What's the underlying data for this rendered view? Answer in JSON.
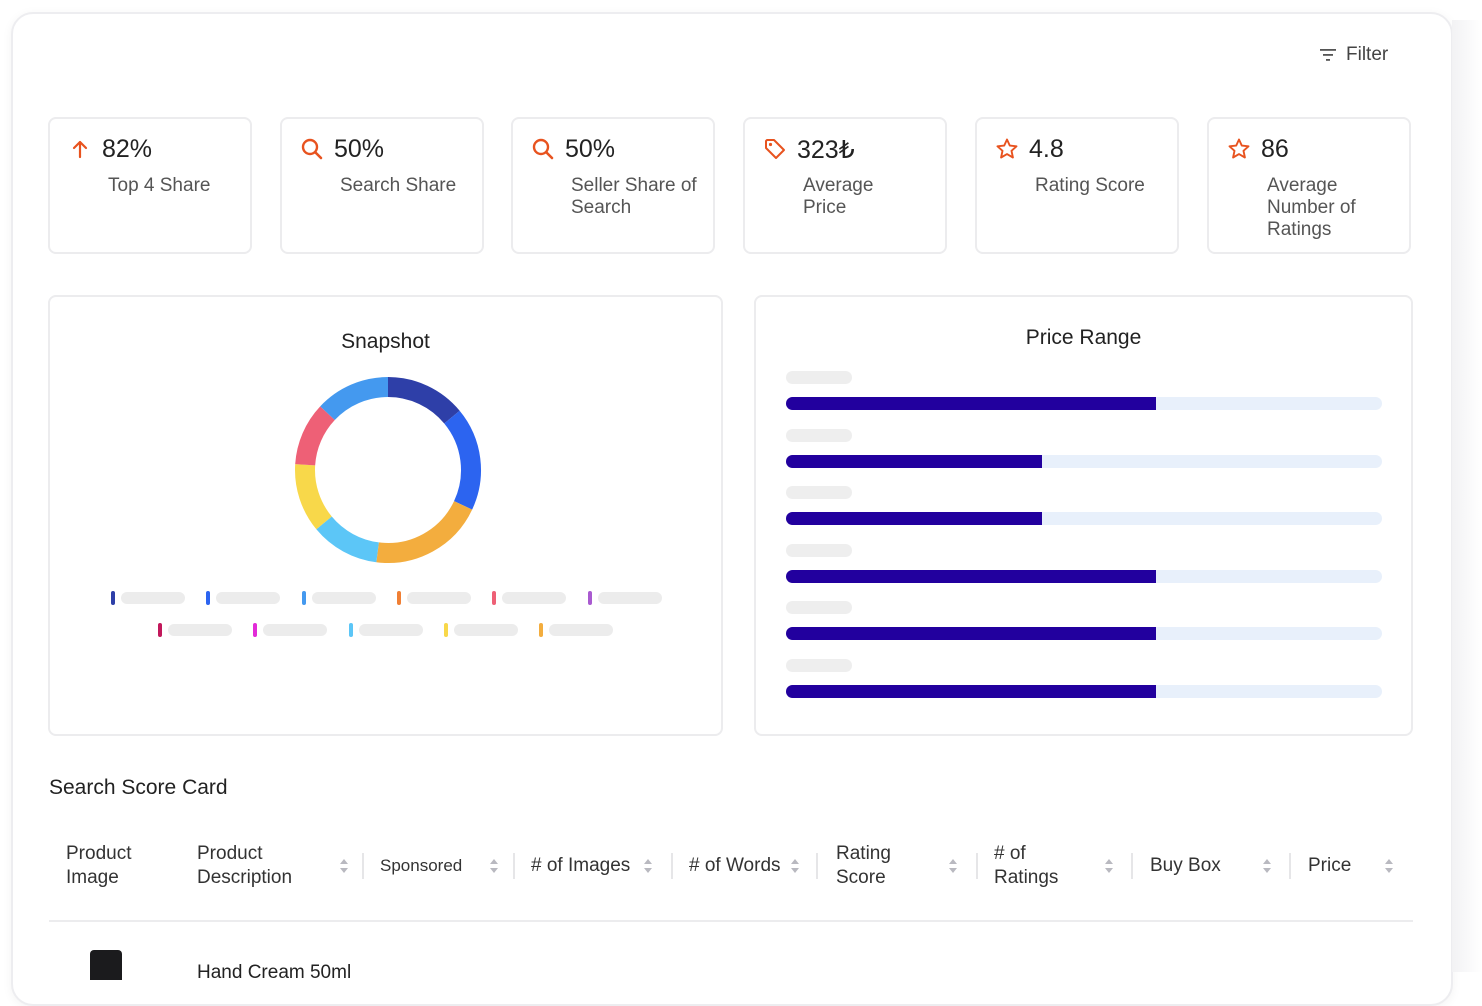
{
  "header": {
    "filter_label": "Filter"
  },
  "kpis": [
    {
      "value": "82%",
      "label": "Top 4 Share",
      "icon": "arrow-up-icon"
    },
    {
      "value": "50%",
      "label": "Search Share",
      "icon": "search-icon"
    },
    {
      "value": "50%",
      "label": "Seller Share of Search",
      "icon": "search-icon"
    },
    {
      "value": "323₺",
      "label": "Average Price",
      "icon": "price-tag-icon"
    },
    {
      "value": "4.8",
      "label": "Rating Score",
      "icon": "star-icon"
    },
    {
      "value": "86",
      "label": "Average Number of Ratings",
      "icon": "star-icon"
    }
  ],
  "colors": {
    "accent": "#e8531f",
    "bar": "#22009e",
    "track": "#e8f0fb"
  },
  "snapshot": {
    "title": "Snapshot",
    "chart_data": {
      "type": "pie",
      "variant": "donut",
      "title": "Snapshot",
      "slices": [
        {
          "value": 14,
          "color": "#2e3fa8"
        },
        {
          "value": 18,
          "color": "#2c64f0"
        },
        {
          "value": 20,
          "color": "#f3ad3e"
        },
        {
          "value": 12,
          "color": "#5cc6f7"
        },
        {
          "value": 12,
          "color": "#f8d84a"
        },
        {
          "value": 11,
          "color": "#ee6076"
        },
        {
          "value": 13,
          "color": "#4499ef"
        }
      ]
    },
    "legend_colors": [
      "#2e3fa8",
      "#2c64f0",
      "#4499ef",
      "#f07f34",
      "#ee6076",
      "#a95ad0",
      "#c2185b",
      "#e22bd8",
      "#5cc6f7",
      "#f8d84a",
      "#f3ad3e"
    ]
  },
  "price_range": {
    "title": "Price Range",
    "chart_data": {
      "type": "bar",
      "orientation": "horizontal",
      "title": "Price Range",
      "values": [
        0.62,
        0.43,
        0.43,
        0.62,
        0.62,
        0.62
      ]
    }
  },
  "score_card": {
    "title": "Search Score Card",
    "columns": [
      "Product Image",
      "Product Description",
      "Sponsored",
      "# of Images",
      "# of Words",
      "Rating Score",
      "# of Ratings",
      "Buy Box",
      "Price"
    ],
    "first_row_description": "Hand Cream 50ml"
  }
}
